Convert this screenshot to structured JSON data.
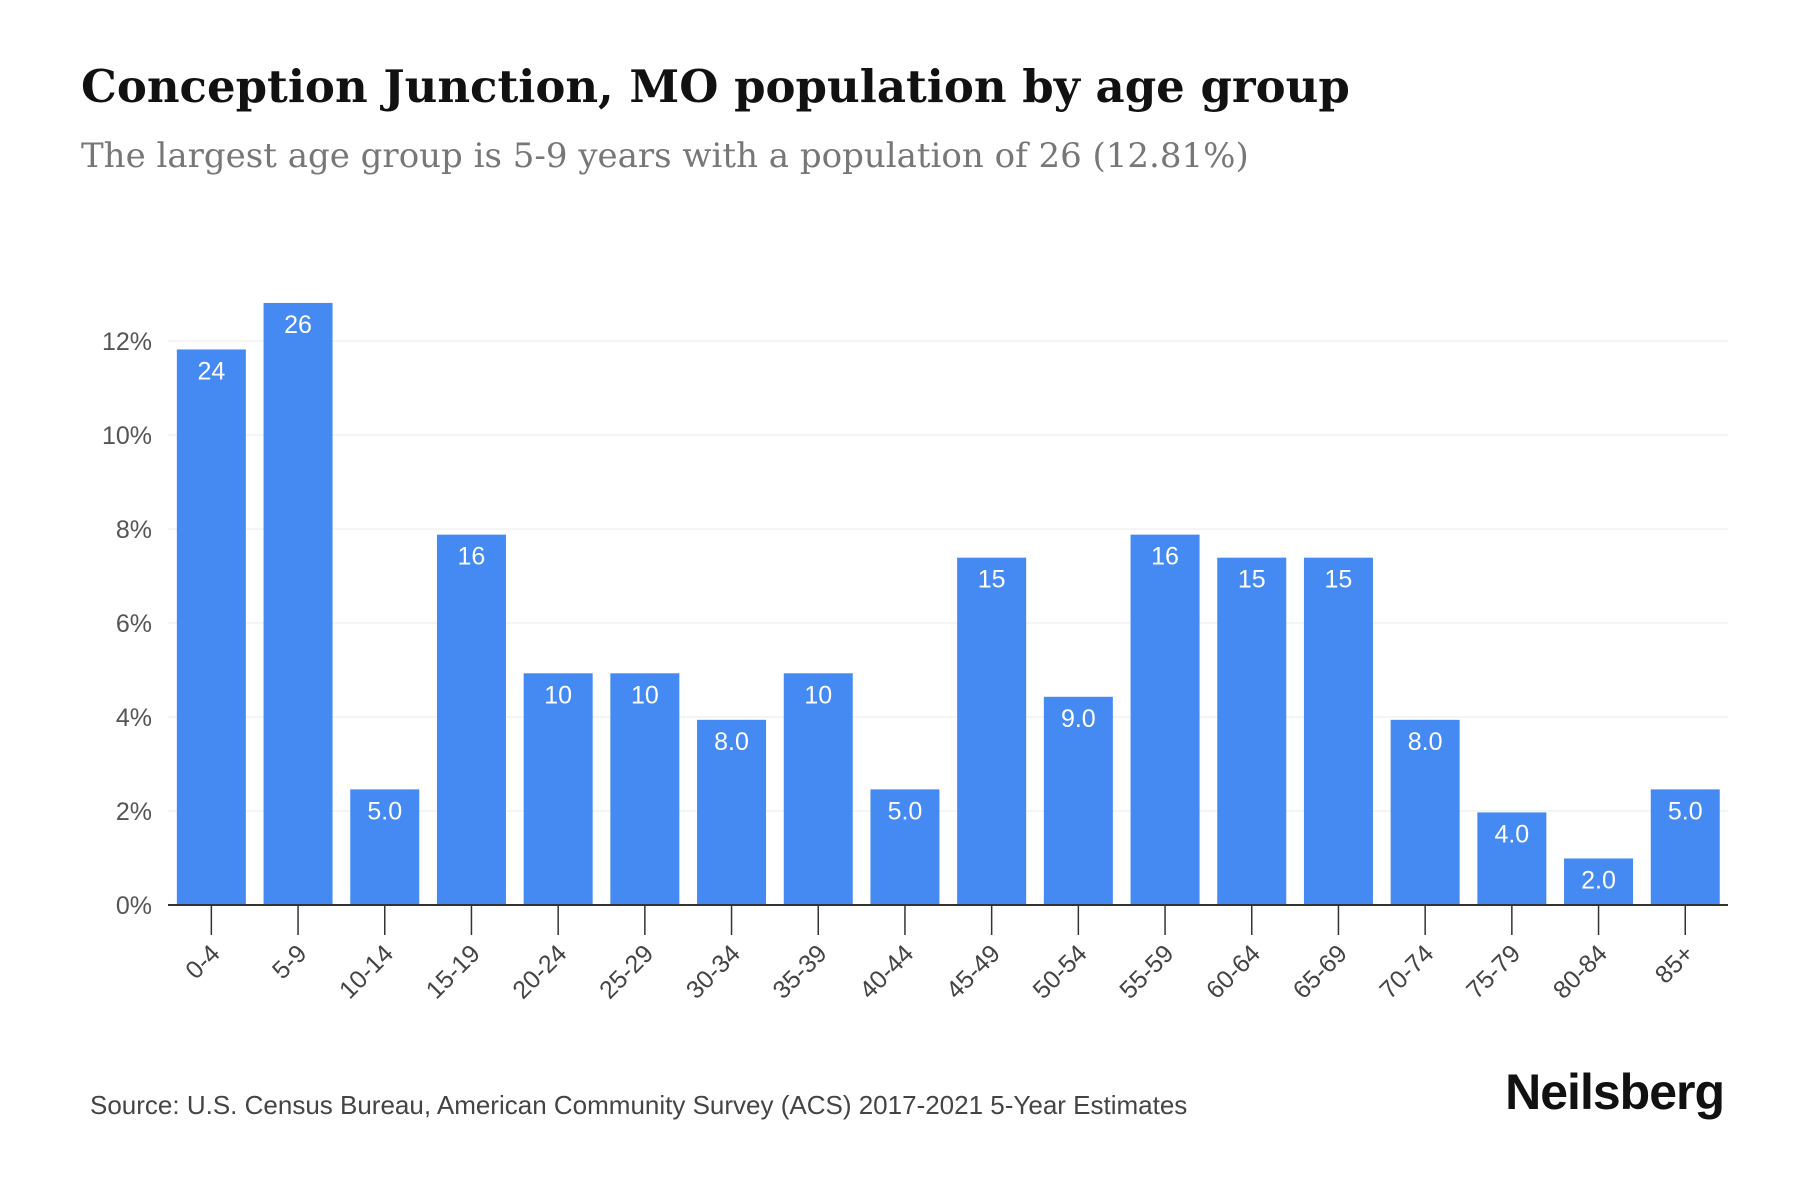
{
  "chart_data": {
    "type": "bar",
    "title": "Conception Junction, MO population by age group",
    "subtitle": "The largest age group is 5-9 years with a population of 26 (12.81%)",
    "xlabel": "",
    "ylabel": "",
    "categories": [
      "0-4",
      "5-9",
      "10-14",
      "15-19",
      "20-24",
      "25-29",
      "30-34",
      "35-39",
      "40-44",
      "45-49",
      "50-54",
      "55-59",
      "60-64",
      "65-69",
      "70-74",
      "75-79",
      "80-84",
      "85+"
    ],
    "values": [
      11.82,
      12.81,
      2.46,
      7.88,
      4.93,
      4.93,
      3.94,
      4.93,
      2.46,
      7.39,
      4.43,
      7.88,
      7.39,
      7.39,
      3.94,
      1.97,
      0.99,
      2.46
    ],
    "data_labels": [
      "24",
      "26",
      "5.0",
      "16",
      "10",
      "10",
      "8.0",
      "10",
      "5.0",
      "15",
      "9.0",
      "16",
      "15",
      "15",
      "8.0",
      "4.0",
      "2.0",
      "5.0"
    ],
    "ylim": [
      0,
      14
    ],
    "yticks": [
      0,
      2,
      4,
      6,
      8,
      10,
      12
    ],
    "ytick_labels": [
      "0%",
      "2%",
      "4%",
      "6%",
      "8%",
      "10%",
      "12%"
    ],
    "grid": true,
    "legend": "none",
    "bar_color": "#4589f3"
  },
  "footer": {
    "source": "Source: U.S. Census Bureau, American Community Survey (ACS) 2017-2021 5-Year Estimates",
    "brand": "Neilsberg"
  }
}
